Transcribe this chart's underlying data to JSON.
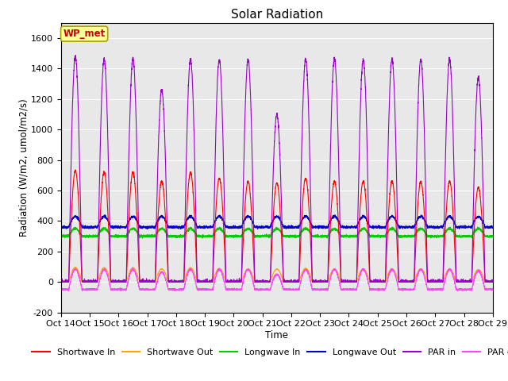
{
  "title": "Solar Radiation",
  "xlabel": "Time",
  "ylabel": "Radiation (W/m2, umol/m2/s)",
  "ylim": [
    -200,
    1700
  ],
  "xlim": [
    0,
    15
  ],
  "xtick_labels": [
    "Oct 14",
    "Oct 15",
    "Oct 16",
    "Oct 17",
    "Oct 18",
    "Oct 19",
    "Oct 20",
    "Oct 21",
    "Oct 22",
    "Oct 23",
    "Oct 24",
    "Oct 25",
    "Oct 26",
    "Oct 27",
    "Oct 28",
    "Oct 29"
  ],
  "legend_labels": [
    "Shortwave In",
    "Shortwave Out",
    "Longwave In",
    "Longwave Out",
    "PAR in",
    "PAR out"
  ],
  "colors": {
    "shortwave_in": "#ff0000",
    "shortwave_out": "#ffa500",
    "longwave_in": "#00cc00",
    "longwave_out": "#0000cc",
    "par_in": "#9900cc",
    "par_out": "#ff44ff"
  },
  "n_days": 15,
  "pts_per_day": 288,
  "par_peaks": [
    1480,
    1460,
    1460,
    1260,
    1460,
    1460,
    1460,
    1100,
    1460,
    1460,
    1460,
    1460,
    1460,
    1460,
    1340
  ],
  "sw_peaks": [
    730,
    720,
    720,
    660,
    720,
    680,
    660,
    650,
    680,
    660,
    660,
    660,
    660,
    660,
    620
  ],
  "annotation_text": "WP_met",
  "annotation_color": "#cc0000",
  "annotation_bg": "#ffff99",
  "background_color": "#e8e8e8",
  "title_fontsize": 11,
  "label_fontsize": 8.5,
  "tick_fontsize": 8,
  "legend_fontsize": 8
}
